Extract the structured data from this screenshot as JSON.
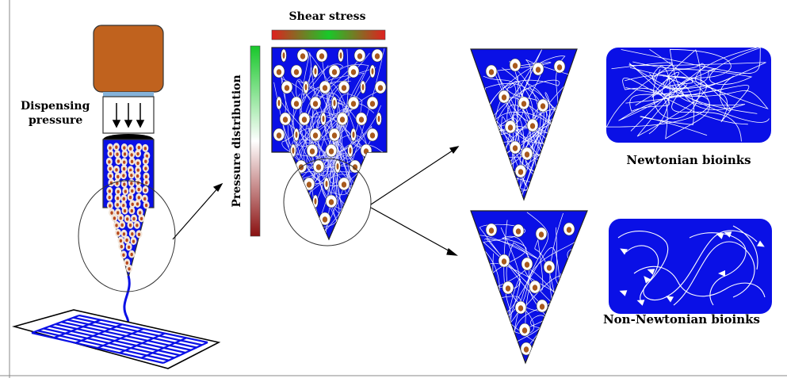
{
  "figure": {
    "labels": {
      "dispensing_line1": "Dispensing",
      "dispensing_line2": "pressure",
      "shear_stress": "Shear stress",
      "pressure_distribution": "Pressure distribution",
      "newtonian": "Newtonian bioinks",
      "non_newtonian": "Non-Newtonian bioinks"
    },
    "colors": {
      "bioink_blue": "#0a10e6",
      "plunger_orange": "#c0621e",
      "cell_nucleus": "#a85a1c",
      "shear_gradient": [
        "#19c829",
        "#e0201f"
      ],
      "pressure_gradient": [
        "#17c72a",
        "#ffffff",
        "#8a1010"
      ]
    }
  }
}
